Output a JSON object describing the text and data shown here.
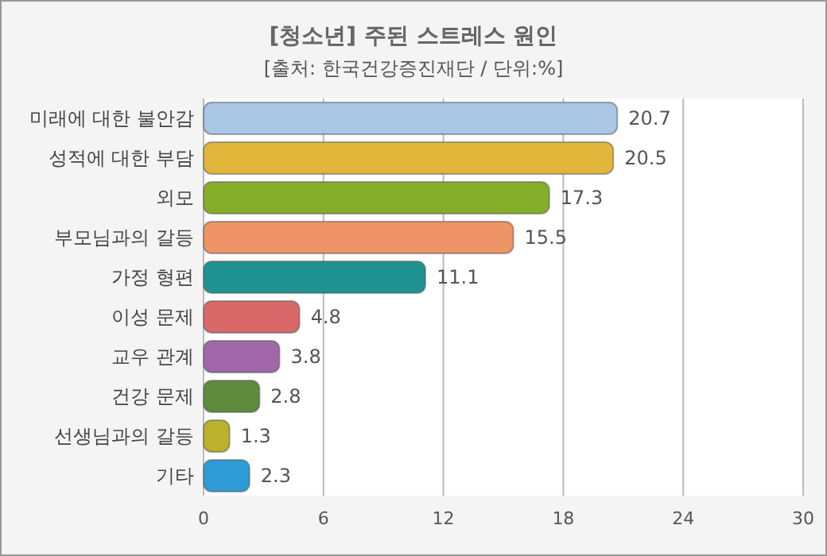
{
  "chart_data": {
    "type": "bar",
    "orientation": "horizontal",
    "title": "[청소년] 주된 스트레스 원인",
    "subtitle": "[출처: 한국건강증진재단 / 단위:%]",
    "categories": [
      "미래에 대한 불안감",
      "성적에 대한 부담",
      "외모",
      "부모님과의 갈등",
      "가정 형편",
      "이성 문제",
      "교우 관계",
      "건강 문제",
      "선생님과의 갈등",
      "기타"
    ],
    "values": [
      20.7,
      20.5,
      17.3,
      15.5,
      11.1,
      4.8,
      3.8,
      2.8,
      1.3,
      2.3
    ],
    "colors": [
      "#a9c6e4",
      "#e2b63a",
      "#86ad2a",
      "#ee9466",
      "#1f9393",
      "#d96868",
      "#a068a8",
      "#5f8a3c",
      "#b9b22a",
      "#2f9bd6"
    ],
    "data_labels": true,
    "xlim": [
      0,
      30
    ],
    "xticks": [
      0,
      6,
      12,
      18,
      24,
      30
    ],
    "grid": "x"
  }
}
